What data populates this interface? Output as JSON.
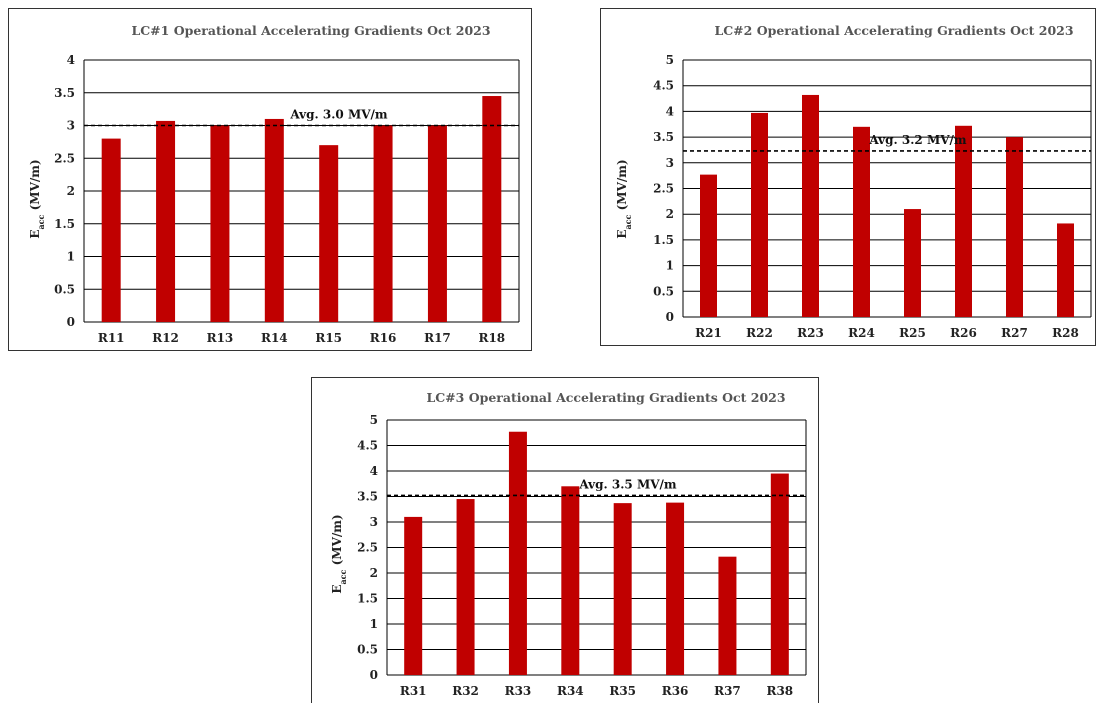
{
  "chart_data": [
    {
      "type": "bar",
      "title": "LC#1 Operational Accelerating Gradients Oct 2023",
      "ylabel_main": "E",
      "ylabel_sub": "acc",
      "ylabel_unit": " (MV/m)",
      "categories": [
        "R11",
        "R12",
        "R13",
        "R14",
        "R15",
        "R16",
        "R17",
        "R18"
      ],
      "values": [
        2.8,
        3.07,
        3.0,
        3.1,
        2.7,
        3.0,
        3.0,
        3.45
      ],
      "ylim": [
        0,
        4
      ],
      "yticks": [
        0,
        0.5,
        1,
        1.5,
        2,
        2.5,
        3,
        3.5,
        4
      ],
      "reference_line": {
        "value": 3.0,
        "label": "Avg. 3.0 MV/m"
      },
      "grid": true,
      "bar_color": "#c00000"
    },
    {
      "type": "bar",
      "title": "LC#2 Operational Accelerating Gradients Oct 2023",
      "ylabel_main": "E",
      "ylabel_sub": "acc",
      "ylabel_unit": " (MV/m)",
      "categories": [
        "R21",
        "R22",
        "R23",
        "R24",
        "R25",
        "R26",
        "R27",
        "R28"
      ],
      "values": [
        2.77,
        3.97,
        4.32,
        3.7,
        2.1,
        3.72,
        3.5,
        1.82
      ],
      "ylim": [
        0,
        5
      ],
      "yticks": [
        0,
        0.5,
        1,
        1.5,
        2,
        2.5,
        3,
        3.5,
        4,
        4.5,
        5
      ],
      "reference_line": {
        "value": 3.23,
        "label": "Avg. 3.2 MV/m"
      },
      "grid": true,
      "bar_color": "#c00000"
    },
    {
      "type": "bar",
      "title": "LC#3 Operational Accelerating Gradients Oct 2023",
      "ylabel_main": "E",
      "ylabel_sub": "acc",
      "ylabel_unit": " (MV/m)",
      "categories": [
        "R31",
        "R32",
        "R33",
        "R34",
        "R35",
        "R36",
        "R37",
        "R38"
      ],
      "values": [
        3.1,
        3.45,
        4.77,
        3.7,
        3.37,
        3.38,
        2.32,
        3.95
      ],
      "ylim": [
        0,
        5
      ],
      "yticks": [
        0,
        0.5,
        1,
        1.5,
        2,
        2.5,
        3,
        3.5,
        4,
        4.5,
        5
      ],
      "reference_line": {
        "value": 3.52,
        "label": "Avg. 3.5 MV/m"
      },
      "grid": true,
      "bar_color": "#c00000"
    }
  ]
}
